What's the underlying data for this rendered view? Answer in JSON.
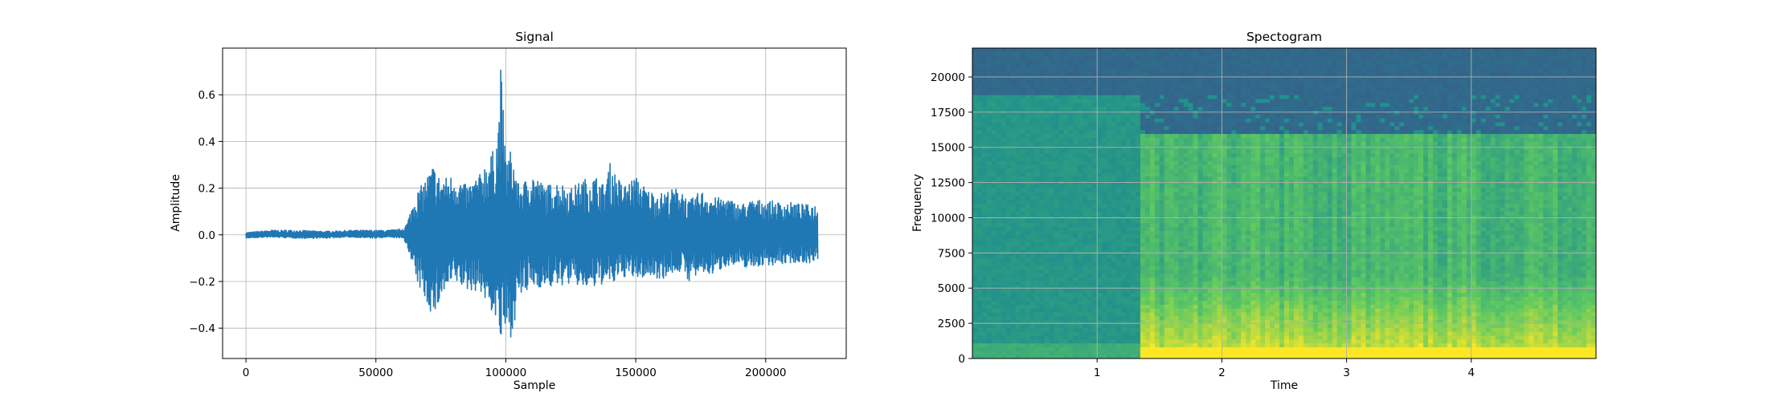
{
  "chart_data": [
    {
      "type": "line",
      "title": "Signal",
      "xlabel": "Sample",
      "ylabel": "Amplitude",
      "xlim": [
        -9000,
        231000
      ],
      "ylim": [
        -0.53,
        0.8
      ],
      "grid": true,
      "color": "#1f77b4",
      "x_ticks": [
        0,
        50000,
        100000,
        150000,
        200000
      ],
      "x_tick_labels": [
        "0",
        "50000",
        "100000",
        "150000",
        "200000"
      ],
      "y_ticks": [
        -0.4,
        -0.2,
        0.0,
        0.2,
        0.4,
        0.6
      ],
      "y_tick_labels": [
        "−0.4",
        "−0.2",
        "0.0",
        "0.2",
        "0.4",
        "0.6"
      ],
      "series": [
        {
          "x": [
            0,
            10000,
            20000,
            30000,
            40000,
            50000,
            55000,
            60000,
            62000,
            65000,
            68000,
            72000,
            75000,
            80000,
            85000,
            90000,
            92000,
            95000,
            97000,
            98000,
            100000,
            102000,
            105000,
            108000,
            110000,
            115000,
            120000,
            125000,
            130000,
            135000,
            138000,
            140000,
            145000,
            150000,
            155000,
            160000,
            165000,
            168000,
            170000,
            175000,
            180000,
            185000,
            190000,
            195000,
            200000,
            205000,
            210000,
            215000,
            220000
          ],
          "max": [
            0.01,
            0.02,
            0.02,
            0.015,
            0.02,
            0.02,
            0.02,
            0.025,
            0.05,
            0.17,
            0.22,
            0.3,
            0.24,
            0.26,
            0.21,
            0.26,
            0.31,
            0.36,
            0.45,
            0.74,
            0.32,
            0.37,
            0.21,
            0.24,
            0.27,
            0.21,
            0.23,
            0.2,
            0.24,
            0.25,
            0.21,
            0.31,
            0.21,
            0.25,
            0.19,
            0.18,
            0.2,
            0.2,
            0.14,
            0.19,
            0.16,
            0.16,
            0.13,
            0.15,
            0.15,
            0.14,
            0.14,
            0.13,
            0.13
          ],
          "min": [
            -0.015,
            -0.01,
            -0.015,
            -0.015,
            -0.01,
            -0.015,
            -0.01,
            -0.015,
            -0.05,
            -0.19,
            -0.26,
            -0.36,
            -0.27,
            -0.2,
            -0.24,
            -0.24,
            -0.29,
            -0.34,
            -0.4,
            -0.47,
            -0.42,
            -0.44,
            -0.27,
            -0.25,
            -0.22,
            -0.23,
            -0.22,
            -0.21,
            -0.23,
            -0.23,
            -0.2,
            -0.22,
            -0.18,
            -0.19,
            -0.18,
            -0.19,
            -0.16,
            -0.16,
            -0.2,
            -0.17,
            -0.17,
            -0.13,
            -0.14,
            -0.14,
            -0.13,
            -0.13,
            -0.12,
            -0.12,
            -0.12
          ]
        }
      ]
    },
    {
      "type": "heatmap",
      "title": "Spectogram",
      "xlabel": "Time",
      "ylabel": "Frequency",
      "xlim": [
        0,
        5
      ],
      "ylim": [
        0,
        22050
      ],
      "grid": true,
      "colormap": "viridis",
      "x_ticks": [
        1,
        2,
        3,
        4
      ],
      "x_tick_labels": [
        "1",
        "2",
        "3",
        "4"
      ],
      "y_ticks": [
        0,
        2500,
        5000,
        7500,
        10000,
        12500,
        15000,
        17500,
        20000
      ],
      "y_tick_labels": [
        "0",
        "2500",
        "5000",
        "7500",
        "10000",
        "12500",
        "15000",
        "17500",
        "20000"
      ],
      "onset_time": 1.35,
      "cutoff_before_onset": 18800,
      "cutoff_after_onset": 16000
    }
  ]
}
